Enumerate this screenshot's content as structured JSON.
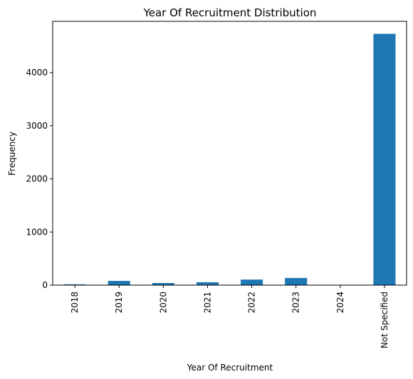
{
  "chart_data": {
    "type": "bar",
    "title": "Year Of Recruitment Distribution",
    "xlabel": "Year Of Recruitment",
    "ylabel": "Frequency",
    "categories": [
      "2018",
      "2019",
      "2020",
      "2021",
      "2022",
      "2023",
      "2024",
      "Not Specified"
    ],
    "values": [
      15,
      80,
      40,
      55,
      105,
      135,
      2,
      4730
    ],
    "ylim": [
      0,
      4965
    ],
    "yticks": [
      0,
      1000,
      2000,
      3000,
      4000
    ],
    "grid": false,
    "legend": "none",
    "colors": {
      "bar": "#1f77b4",
      "axis": "#000000",
      "background": "#ffffff"
    }
  }
}
